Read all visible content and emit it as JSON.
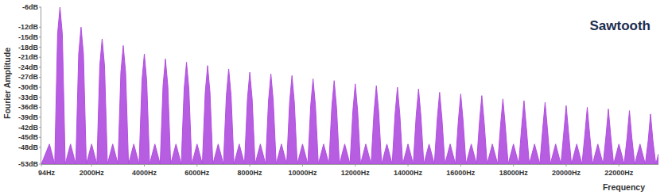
{
  "chart_data": {
    "type": "area",
    "title": "Sawtooth",
    "x_label": "Frequency",
    "y_label": "Fourier Amplitude",
    "color": "#b14fe0",
    "grid": false,
    "xlim": [
      94,
      23500
    ],
    "ylim": [
      -53,
      -6
    ],
    "xticks": [
      {
        "value": 94,
        "label": "94Hz"
      },
      {
        "value": 2000,
        "label": "2000Hz"
      },
      {
        "value": 4000,
        "label": "4000Hz"
      },
      {
        "value": 6000,
        "label": "6000Hz"
      },
      {
        "value": 8000,
        "label": "8000Hz"
      },
      {
        "value": 10000,
        "label": "10000Hz"
      },
      {
        "value": 12000,
        "label": "12000Hz"
      },
      {
        "value": 14000,
        "label": "14000Hz"
      },
      {
        "value": 16000,
        "label": "16000Hz"
      },
      {
        "value": 18000,
        "label": "18000Hz"
      },
      {
        "value": 20000,
        "label": "20000Hz"
      },
      {
        "value": 22000,
        "label": "22000Hz"
      }
    ],
    "yticks": [
      {
        "value": -6,
        "label": "-6dB"
      },
      {
        "value": -12,
        "label": "-12dB"
      },
      {
        "value": -15,
        "label": "-15dB"
      },
      {
        "value": -18,
        "label": "-18dB"
      },
      {
        "value": -21,
        "label": "-21dB"
      },
      {
        "value": -24,
        "label": "-24dB"
      },
      {
        "value": -27,
        "label": "-27dB"
      },
      {
        "value": -30,
        "label": "-30dB"
      },
      {
        "value": -33,
        "label": "-33dB"
      },
      {
        "value": -36,
        "label": "-36dB"
      },
      {
        "value": -39,
        "label": "-39dB"
      },
      {
        "value": -42,
        "label": "-42dB"
      },
      {
        "value": -45,
        "label": "-45dB"
      },
      {
        "value": -48,
        "label": "-48dB"
      },
      {
        "value": -53,
        "label": "-53dB"
      }
    ],
    "x": [
      94,
      400,
      600,
      710,
      800,
      890,
      1000,
      1200,
      1400,
      1510,
      1600,
      1690,
      1800,
      2000,
      2200,
      2310,
      2400,
      2490,
      2600,
      2800,
      3000,
      3110,
      3200,
      3290,
      3400,
      3600,
      3800,
      3910,
      4000,
      4090,
      4200,
      4400,
      4600,
      4710,
      4800,
      4890,
      5000,
      5200,
      5400,
      5510,
      5600,
      5690,
      5800,
      6000,
      6200,
      6310,
      6400,
      6490,
      6600,
      6800,
      7000,
      7110,
      7200,
      7290,
      7400,
      7600,
      7800,
      7910,
      8000,
      8090,
      8200,
      8400,
      8600,
      8710,
      8800,
      8890,
      9000,
      9200,
      9400,
      9510,
      9600,
      9690,
      9800,
      10000,
      10200,
      10310,
      10400,
      10490,
      10600,
      10800,
      11000,
      11110,
      11200,
      11290,
      11400,
      11600,
      11800,
      11910,
      12000,
      12090,
      12200,
      12400,
      12600,
      12710,
      12800,
      12890,
      13000,
      13200,
      13400,
      13510,
      13600,
      13690,
      13800,
      14000,
      14200,
      14310,
      14400,
      14490,
      14600,
      14800,
      15000,
      15110,
      15200,
      15290,
      15400,
      15600,
      15800,
      15910,
      16000,
      16090,
      16200,
      16400,
      16600,
      16710,
      16800,
      16890,
      17000,
      17200,
      17400,
      17510,
      17600,
      17690,
      17800,
      18000,
      18200,
      18310,
      18400,
      18490,
      18600,
      18800,
      19000,
      19110,
      19200,
      19290,
      19400,
      19600,
      19800,
      19910,
      20000,
      20090,
      20200,
      20400,
      20600,
      20710,
      20800,
      20890,
      21000,
      21200,
      21400,
      21510,
      21600,
      21690,
      21800,
      22000,
      22200,
      22310,
      22400,
      22490,
      22600,
      22800,
      23000,
      23110,
      23200,
      23290,
      23400,
      23500
    ],
    "values": [
      -53,
      -47,
      -53,
      -14,
      -6,
      -14,
      -53,
      -47,
      -53,
      -20,
      -12,
      -20,
      -53,
      -47,
      -53,
      -23.5,
      -15.5,
      -23.5,
      -53,
      -47,
      -53,
      -25.5,
      -17.5,
      -25.5,
      -53,
      -47,
      -53,
      -28,
      -20,
      -28,
      -53,
      -47,
      -53,
      -29.5,
      -21.5,
      -29.5,
      -53,
      -47,
      -53,
      -30.5,
      -22.5,
      -30.5,
      -53,
      -47,
      -53,
      -31.5,
      -23.5,
      -31.5,
      -53,
      -47,
      -53,
      -32.5,
      -24.5,
      -32.5,
      -53,
      -47,
      -53,
      -33.5,
      -25.5,
      -33.5,
      -53,
      -47,
      -53,
      -34,
      -26,
      -34,
      -53,
      -47,
      -53,
      -34.5,
      -26.5,
      -34.5,
      -53,
      -47,
      -53,
      -35.5,
      -27.5,
      -35.5,
      -53,
      -47,
      -53,
      -36,
      -28,
      -36,
      -53,
      -47,
      -53,
      -37,
      -29,
      -37,
      -53,
      -47,
      -53,
      -37.5,
      -29.5,
      -37.5,
      -53,
      -47,
      -53,
      -38,
      -30,
      -38,
      -53,
      -47,
      -53,
      -38.5,
      -30.5,
      -38.5,
      -53,
      -47,
      -53,
      -39.5,
      -31.5,
      -39.5,
      -53,
      -47,
      -53,
      -40,
      -32,
      -40,
      -53,
      -47,
      -53,
      -40.5,
      -32.5,
      -40.5,
      -53,
      -47,
      -53,
      -41.5,
      -33.5,
      -41.5,
      -53,
      -47,
      -53,
      -42,
      -34,
      -42,
      -53,
      -47,
      -53,
      -42.5,
      -34.5,
      -42.5,
      -53,
      -47,
      -53,
      -43.5,
      -35.5,
      -43.5,
      -53,
      -47,
      -53,
      -44,
      -36,
      -44,
      -53,
      -47,
      -53,
      -44.5,
      -36.5,
      -44.5,
      -53,
      -47,
      -53,
      -45,
      -37,
      -45,
      -53,
      -47,
      -53,
      -46,
      -38,
      -46,
      -53,
      -50
    ]
  }
}
